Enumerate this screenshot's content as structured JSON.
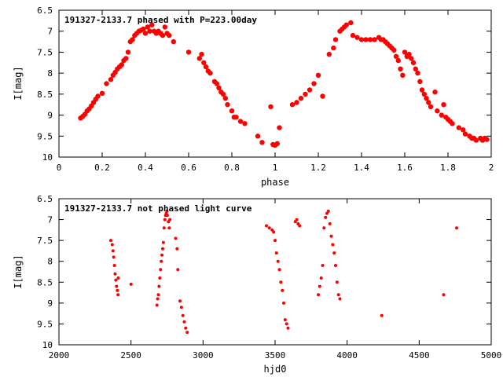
{
  "chart_data": [
    {
      "type": "scatter",
      "title": "191327-2133.7 phased with P=223.00day",
      "xlabel": "phase",
      "ylabel": "I[mag]",
      "xlim": [
        0,
        2
      ],
      "ylim": [
        10,
        6.5
      ],
      "y_inverted": true,
      "x_ticks": [
        "0",
        "0.2",
        "0.4",
        "0.6",
        "0.8",
        "1",
        "1.2",
        "1.4",
        "1.6",
        "1.8",
        "2"
      ],
      "y_ticks": [
        "6.5",
        "7",
        "7.5",
        "8",
        "8.5",
        "9",
        "9.5",
        "10"
      ],
      "grid": false,
      "marker_color": "#ff0000",
      "marker_size": 3.2,
      "series": [
        {
          "x": [
            0.1,
            0.11,
            0.12,
            0.13,
            0.14,
            0.15,
            0.16,
            0.17,
            0.18,
            0.2,
            0.22,
            0.24,
            0.25,
            0.26,
            0.27,
            0.28,
            0.29,
            0.3,
            0.31,
            0.32,
            0.33,
            0.34,
            0.35,
            0.36,
            0.37,
            0.38,
            0.39,
            0.4,
            0.41,
            0.42,
            0.43,
            0.44,
            0.45,
            0.46,
            0.47,
            0.48,
            0.49,
            0.5,
            0.51,
            0.53,
            0.6,
            0.65,
            0.66,
            0.67,
            0.68,
            0.69,
            0.7,
            0.72,
            0.73,
            0.74,
            0.75,
            0.76,
            0.77,
            0.78,
            0.8,
            0.81,
            0.82,
            0.84,
            0.86,
            0.92,
            0.94,
            0.98,
            0.99,
            1.0,
            1.01,
            1.02,
            1.08,
            1.1,
            1.12,
            1.14,
            1.16,
            1.18,
            1.2,
            1.22,
            1.25,
            1.27,
            1.28,
            1.3,
            1.31,
            1.32,
            1.33,
            1.35,
            1.36,
            1.38,
            1.4,
            1.42,
            1.44,
            1.46,
            1.48,
            1.49,
            1.5,
            1.51,
            1.52,
            1.53,
            1.54,
            1.55,
            1.56,
            1.57,
            1.58,
            1.59,
            1.6,
            1.61,
            1.62,
            1.63,
            1.64,
            1.65,
            1.66,
            1.67,
            1.68,
            1.69,
            1.7,
            1.71,
            1.72,
            1.74,
            1.75,
            1.77,
            1.78,
            1.79,
            1.8,
            1.81,
            1.82,
            1.85,
            1.87,
            1.88,
            1.9,
            1.91,
            1.92,
            1.93,
            1.95,
            1.96,
            1.97,
            1.98
          ],
          "y": [
            9.07,
            9.03,
            8.98,
            8.9,
            8.85,
            8.78,
            8.7,
            8.62,
            8.55,
            8.48,
            8.25,
            8.15,
            8.05,
            7.98,
            7.9,
            7.85,
            7.8,
            7.7,
            7.65,
            7.5,
            7.25,
            7.2,
            7.1,
            7.05,
            7.0,
            6.98,
            6.95,
            7.05,
            6.9,
            7.0,
            6.85,
            7.0,
            7.05,
            7.0,
            7.05,
            7.1,
            6.9,
            7.05,
            7.1,
            7.25,
            7.5,
            7.65,
            7.55,
            7.75,
            7.85,
            7.95,
            8.0,
            8.2,
            8.25,
            8.35,
            8.45,
            8.5,
            8.6,
            8.75,
            8.9,
            9.05,
            9.05,
            9.15,
            9.2,
            9.5,
            9.65,
            8.8,
            9.7,
            9.72,
            9.68,
            9.3,
            8.75,
            8.7,
            8.6,
            8.5,
            8.4,
            8.25,
            8.05,
            8.55,
            7.55,
            7.4,
            7.2,
            7.0,
            6.95,
            6.9,
            6.85,
            6.8,
            7.1,
            7.15,
            7.2,
            7.2,
            7.2,
            7.2,
            7.15,
            7.2,
            7.2,
            7.25,
            7.3,
            7.35,
            7.4,
            7.45,
            7.6,
            7.7,
            7.9,
            8.05,
            7.5,
            7.6,
            7.55,
            7.65,
            7.75,
            7.9,
            8.0,
            8.2,
            8.4,
            8.5,
            8.6,
            8.7,
            8.8,
            8.45,
            8.9,
            9.0,
            8.75,
            9.05,
            9.1,
            9.15,
            9.2,
            9.3,
            9.35,
            9.45,
            9.5,
            9.55,
            9.55,
            9.6,
            9.55,
            9.6,
            9.55,
            9.58
          ]
        }
      ]
    },
    {
      "type": "scatter",
      "title": "191327-2133.7 not phased light curve",
      "xlabel": "hjd0",
      "ylabel": "I[mag]",
      "xlim": [
        2000,
        5000
      ],
      "ylim": [
        10,
        6.5
      ],
      "y_inverted": true,
      "x_ticks": [
        "2000",
        "2500",
        "3000",
        "3500",
        "4000",
        "4500",
        "5000"
      ],
      "y_ticks": [
        "6.5",
        "7",
        "7.5",
        "8",
        "8.5",
        "9",
        "9.5",
        "10"
      ],
      "grid": false,
      "marker_color": "#ff0000",
      "marker_size": 2.0,
      "series": [
        {
          "x": [
            2360,
            2370,
            2375,
            2380,
            2385,
            2390,
            2395,
            2400,
            2405,
            2410,
            2412,
            2500,
            2680,
            2685,
            2690,
            2695,
            2700,
            2705,
            2710,
            2715,
            2720,
            2725,
            2730,
            2735,
            2740,
            2745,
            2750,
            2752,
            2760,
            2765,
            2770,
            2810,
            2820,
            2825,
            2840,
            2850,
            2860,
            2870,
            2880,
            2890,
            3440,
            3460,
            3480,
            3490,
            3500,
            3510,
            3520,
            3530,
            3540,
            3550,
            3560,
            3570,
            3580,
            3590,
            3640,
            3650,
            3660,
            3670,
            3800,
            3810,
            3820,
            3830,
            3840,
            3850,
            3860,
            3870,
            3880,
            3890,
            3900,
            3910,
            3920,
            3930,
            3940,
            3950,
            4240,
            4670,
            4760
          ],
          "y": [
            7.5,
            7.6,
            7.75,
            7.9,
            8.1,
            8.3,
            8.45,
            8.6,
            8.7,
            8.8,
            8.4,
            8.55,
            9.05,
            8.9,
            8.8,
            8.6,
            8.4,
            8.2,
            8.0,
            7.85,
            7.7,
            7.55,
            7.2,
            7.0,
            6.9,
            6.85,
            6.8,
            6.9,
            7.05,
            7.2,
            7.0,
            7.45,
            7.7,
            8.2,
            8.95,
            9.1,
            9.3,
            9.45,
            9.6,
            9.7,
            7.15,
            7.2,
            7.25,
            7.3,
            7.5,
            7.8,
            8.0,
            8.2,
            8.5,
            8.7,
            9.0,
            9.4,
            9.5,
            9.6,
            7.05,
            7.0,
            7.1,
            7.15,
            8.8,
            8.6,
            8.4,
            8.1,
            7.2,
            6.95,
            6.85,
            6.8,
            7.1,
            7.4,
            7.6,
            7.8,
            8.1,
            8.5,
            8.8,
            8.9,
            9.3,
            8.8,
            7.2
          ]
        }
      ]
    }
  ]
}
